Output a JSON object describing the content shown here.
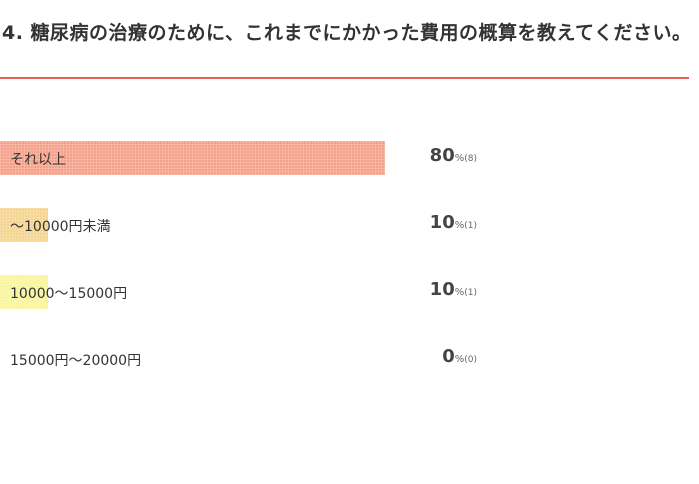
{
  "question": "4. 糖尿病の治療のために、これまでにかかった費用の概算を教えてください。",
  "chart_data": {
    "type": "bar",
    "orientation": "horizontal",
    "categories": [
      "それ以上",
      "～10000円未満",
      "10000～15000円",
      "15000円～20000円"
    ],
    "values": [
      80,
      10,
      10,
      0
    ],
    "counts": [
      8,
      1,
      1,
      0
    ],
    "unit": "%",
    "xlim": [
      0,
      100
    ],
    "colors": [
      "#f5a08a",
      "#f5d48f",
      "#f8f59a",
      "#eeeeee"
    ]
  }
}
